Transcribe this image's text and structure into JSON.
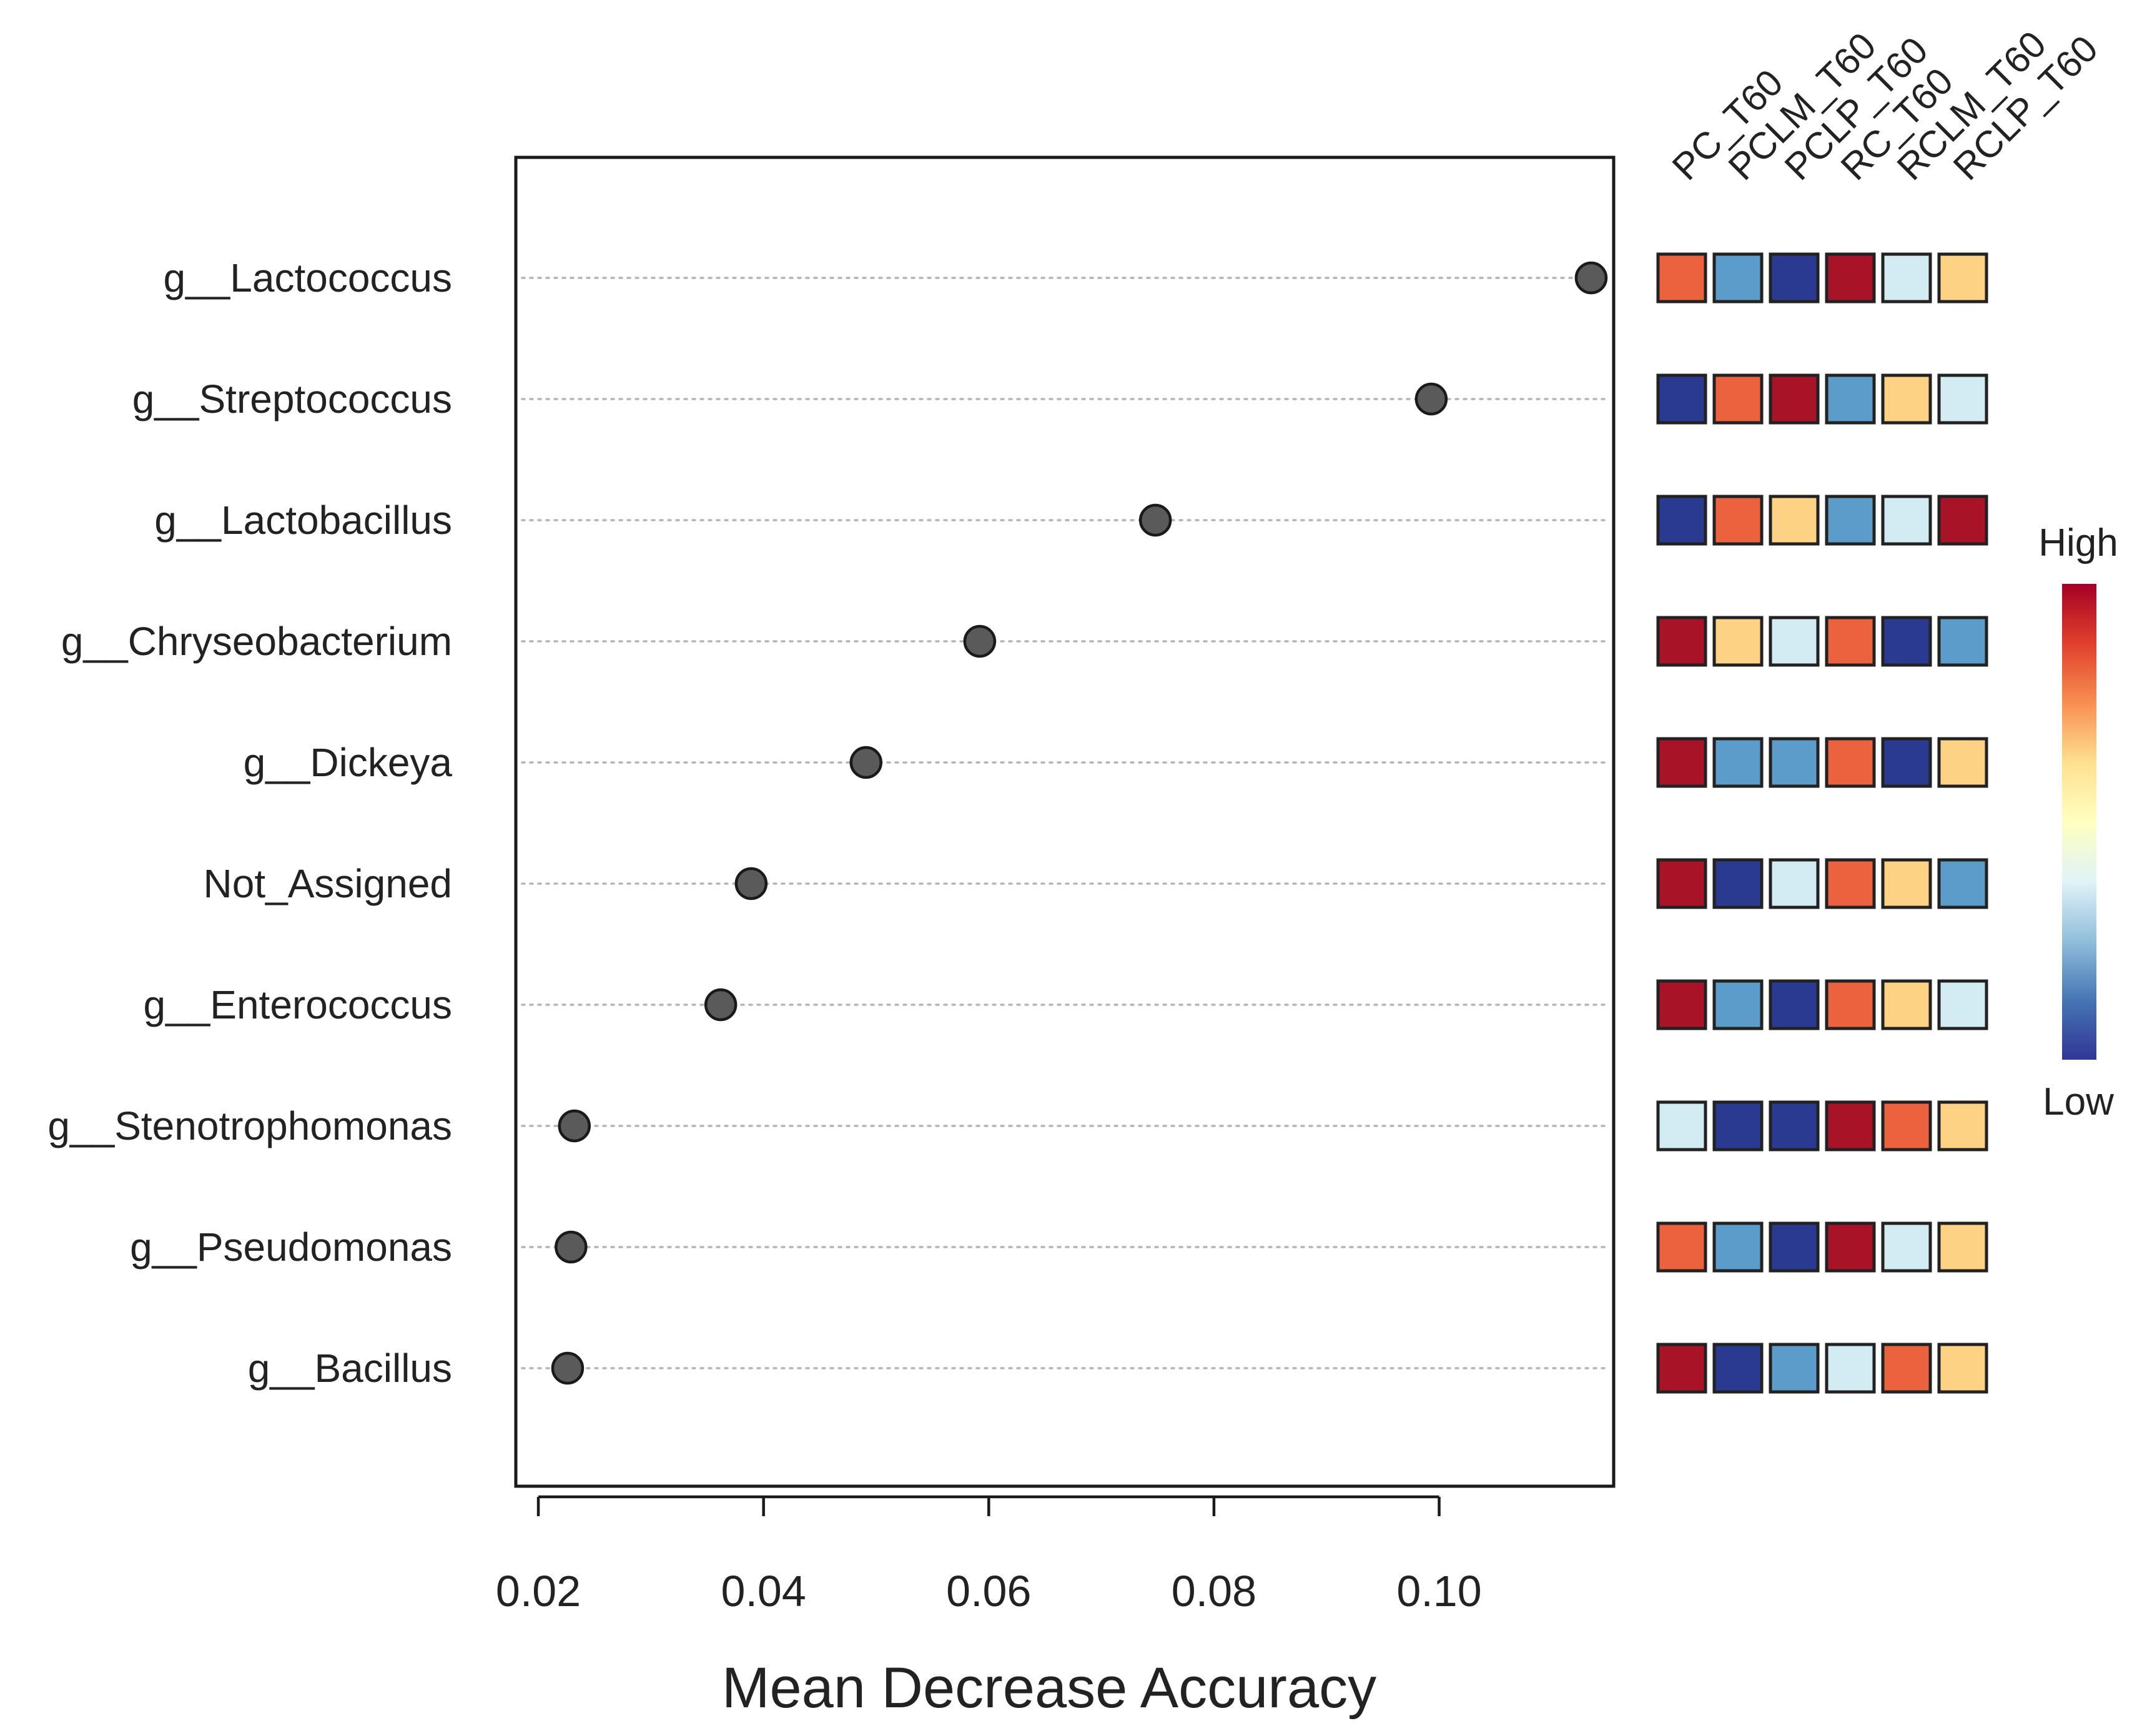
{
  "chart_data": {
    "type": "scatter",
    "subtype": "variable-importance dot plot with abundance heatmap",
    "xlabel": "Mean Decrease Accuracy",
    "xlim": [
      0.018,
      0.1155
    ],
    "xticks": [
      0.02,
      0.04,
      0.06,
      0.08,
      0.1
    ],
    "xtick_labels": [
      "0.02",
      "0.04",
      "0.06",
      "0.08",
      "0.10"
    ],
    "features": [
      {
        "name": "g__Lactococcus",
        "value": 0.1135
      },
      {
        "name": "g__Streptococcus",
        "value": 0.0993
      },
      {
        "name": "g__Lactobacillus",
        "value": 0.0748
      },
      {
        "name": "g__Chryseobacterium",
        "value": 0.0592
      },
      {
        "name": "g__Dickeya",
        "value": 0.0491
      },
      {
        "name": "Not_Assigned",
        "value": 0.0389
      },
      {
        "name": "g__Enterococcus",
        "value": 0.0362
      },
      {
        "name": "g__Stenotrophomonas",
        "value": 0.0232
      },
      {
        "name": "g__Pseudomonas",
        "value": 0.0229
      },
      {
        "name": "g__Bacillus",
        "value": 0.0226
      }
    ],
    "heatmap": {
      "columns": [
        "PC_T60",
        "PCLM_T60",
        "PCLP_T60",
        "RC_T60",
        "RCLM_T60",
        "RCLP_T60"
      ],
      "scale_levels": 6,
      "rows": [
        [
          5,
          2,
          1,
          6,
          3,
          4
        ],
        [
          1,
          5,
          6,
          2,
          4,
          3
        ],
        [
          1,
          5,
          4,
          2,
          3,
          6
        ],
        [
          6,
          4,
          3,
          5,
          1,
          2
        ],
        [
          6,
          2,
          2,
          5,
          1,
          4
        ],
        [
          6,
          1,
          3,
          5,
          4,
          2
        ],
        [
          6,
          2,
          1,
          5,
          4,
          3
        ],
        [
          3,
          1,
          1,
          6,
          5,
          4
        ],
        [
          5,
          2,
          1,
          6,
          3,
          4
        ],
        [
          6,
          1,
          2,
          3,
          5,
          4
        ]
      ],
      "palette": {
        "1": "#2b3a91",
        "2": "#5c9ccb",
        "3": "#d3ebf3",
        "4": "#fdd284",
        "5": "#ec613e",
        "6": "#a81328"
      }
    },
    "legend": {
      "title_high": "High",
      "title_low": "Low",
      "gradient": [
        "#a50026",
        "#e0402b",
        "#f98e52",
        "#fee090",
        "#ffffbf",
        "#e0f3f8",
        "#91bfdb",
        "#4575b4",
        "#313695"
      ],
      "position": "right"
    },
    "point_color": "#5a5a5a",
    "grid": "dotted horizontal guides"
  }
}
